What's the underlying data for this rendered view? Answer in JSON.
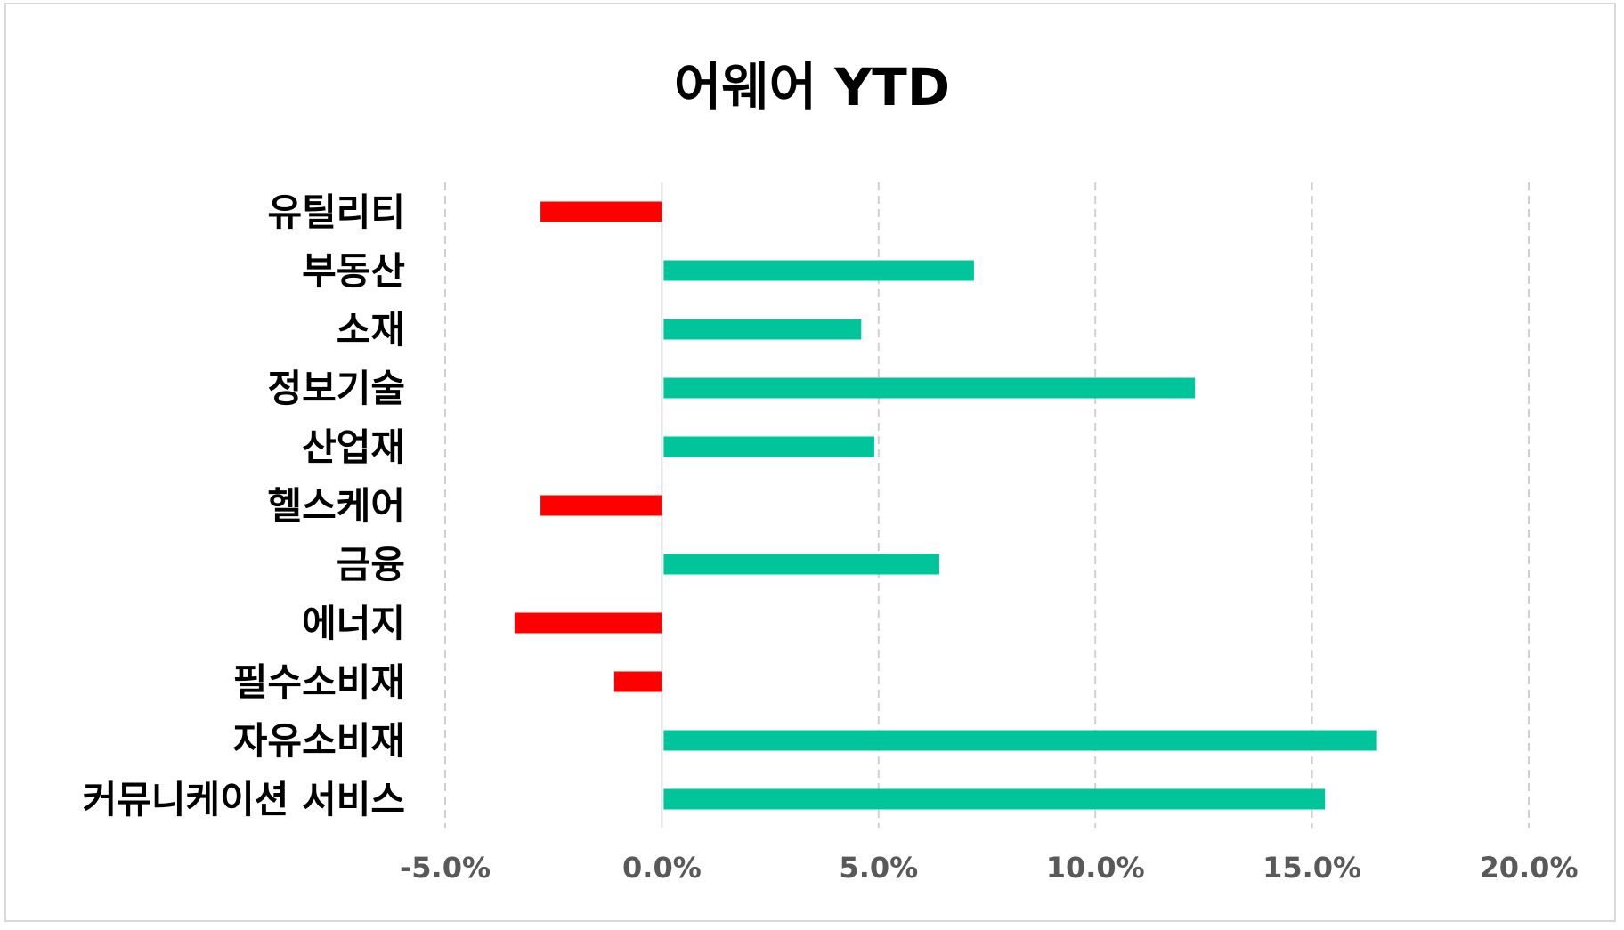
{
  "chart_data": {
    "type": "bar",
    "orientation": "horizontal",
    "title": "어웨어 YTD",
    "categories": [
      "유틸리티",
      "부동산",
      "소재",
      "정보기술",
      "산업재",
      "헬스케어",
      "금융",
      "에너지",
      "필수소비재",
      "자유소비재",
      "커뮤니케이션 서비스"
    ],
    "values": [
      -2.8,
      7.2,
      4.6,
      12.3,
      4.9,
      -2.8,
      6.4,
      -3.4,
      -1.1,
      16.5,
      15.3
    ],
    "xlim": [
      -5,
      20
    ],
    "xticks": [
      -5,
      0,
      5,
      10,
      15,
      20
    ],
    "xtick_labels": [
      "-5.0%",
      "0.0%",
      "5.0%",
      "10.0%",
      "15.0%",
      "20.0%"
    ],
    "grid": "vertical-dashed",
    "legend": "none",
    "colors": {
      "positive": "#00c59a",
      "negative": "#ff0000"
    }
  }
}
